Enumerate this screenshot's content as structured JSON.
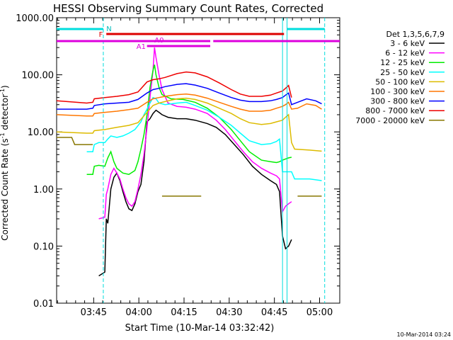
{
  "chart_data": {
    "type": "line",
    "title": "HESSI Observing Summary Count Rates, Corrected",
    "xlabel": "Start Time (10-Mar-14 03:32:42)",
    "ylabel_main": "Corrected Count Rate (s",
    "ylabel_sup": "-1",
    "ylabel_tail": " detector",
    "ylabel_sup2": "-1",
    "ylabel_close": ")",
    "yscale": "log",
    "ylim": [
      0.01,
      1000
    ],
    "xlim_minutes": [
      0,
      94
    ],
    "y_ticks": [
      {
        "v": 1000,
        "label": "1000.00"
      },
      {
        "v": 100,
        "label": "100.00"
      },
      {
        "v": 10,
        "label": "10.00"
      },
      {
        "v": 1,
        "label": "1.00"
      },
      {
        "v": 0.1,
        "label": "0.10"
      },
      {
        "v": 0.01,
        "label": "0.01"
      }
    ],
    "x_ticks": [
      {
        "t": 12.3,
        "label": "03:45"
      },
      {
        "t": 27.3,
        "label": "04:00"
      },
      {
        "t": 42.3,
        "label": "04:15"
      },
      {
        "t": 57.3,
        "label": "04:30"
      },
      {
        "t": 72.3,
        "label": "04:45"
      },
      {
        "t": 87.3,
        "label": "05:00"
      }
    ],
    "legend_title": "Det 1,3,5,6,7,9",
    "legend_position": "right",
    "grid": false,
    "series": [
      {
        "name": "3 - 6 keV",
        "color": "#000000",
        "points": [
          [
            14,
            0.03
          ],
          [
            16,
            0.035
          ],
          [
            16.5,
            0.3
          ],
          [
            17,
            0.25
          ],
          [
            18,
            1.0
          ],
          [
            19,
            1.6
          ],
          [
            20,
            1.9
          ],
          [
            21,
            1.4
          ],
          [
            22,
            0.9
          ],
          [
            23,
            0.6
          ],
          [
            24,
            0.45
          ],
          [
            25,
            0.42
          ],
          [
            26,
            0.55
          ],
          [
            27,
            0.9
          ],
          [
            28,
            1.2
          ],
          [
            29,
            3
          ],
          [
            30,
            15
          ],
          [
            31,
            17
          ],
          [
            32,
            21
          ],
          [
            33,
            24
          ],
          [
            34,
            22
          ],
          [
            35,
            20
          ],
          [
            37,
            18
          ],
          [
            40,
            17
          ],
          [
            43,
            17
          ],
          [
            46,
            16
          ],
          [
            50,
            14
          ],
          [
            53,
            12
          ],
          [
            56,
            9
          ],
          [
            59,
            6
          ],
          [
            62,
            4
          ],
          [
            65,
            2.5
          ],
          [
            68,
            1.8
          ],
          [
            71,
            1.4
          ],
          [
            73,
            1.2
          ],
          [
            74,
            0.9
          ],
          [
            75,
            0.15
          ],
          [
            76,
            0.09
          ],
          [
            77,
            0.1
          ],
          [
            78,
            0.13
          ]
        ]
      },
      {
        "name": "6 - 12 keV",
        "color": "#ff00ff",
        "points": [
          [
            14,
            0.3
          ],
          [
            16,
            0.32
          ],
          [
            16.5,
            0.8
          ],
          [
            17,
            1.0
          ],
          [
            18,
            1.8
          ],
          [
            19,
            2.3
          ],
          [
            20,
            1.9
          ],
          [
            21,
            1.5
          ],
          [
            22,
            1.0
          ],
          [
            23,
            0.7
          ],
          [
            24,
            0.55
          ],
          [
            25,
            0.5
          ],
          [
            26,
            0.6
          ],
          [
            27,
            1.0
          ],
          [
            28,
            1.8
          ],
          [
            29,
            4
          ],
          [
            30,
            12
          ],
          [
            31,
            40
          ],
          [
            32,
            120
          ],
          [
            32.5,
            300
          ],
          [
            33,
            200
          ],
          [
            34,
            100
          ],
          [
            35,
            55
          ],
          [
            37,
            32
          ],
          [
            40,
            28
          ],
          [
            43,
            27
          ],
          [
            46,
            25
          ],
          [
            50,
            21
          ],
          [
            53,
            16
          ],
          [
            56,
            11
          ],
          [
            59,
            7
          ],
          [
            62,
            4.5
          ],
          [
            65,
            3
          ],
          [
            68,
            2.3
          ],
          [
            71,
            1.9
          ],
          [
            73,
            1.7
          ],
          [
            74,
            1.5
          ],
          [
            75,
            0.4
          ],
          [
            76,
            0.5
          ],
          [
            77,
            0.55
          ],
          [
            78,
            0.6
          ]
        ]
      },
      {
        "name": "12 - 25 keV",
        "color": "#00ee00",
        "points": [
          [
            10,
            1.8
          ],
          [
            12,
            1.8
          ],
          [
            12.5,
            2.5
          ],
          [
            14,
            2.6
          ],
          [
            16,
            2.5
          ],
          [
            17,
            3.5
          ],
          [
            18,
            4.5
          ],
          [
            19,
            3.0
          ],
          [
            20,
            2.3
          ],
          [
            22,
            1.9
          ],
          [
            24,
            1.8
          ],
          [
            26,
            2.1
          ],
          [
            27,
            3
          ],
          [
            28,
            5
          ],
          [
            29,
            9
          ],
          [
            30,
            20
          ],
          [
            31,
            60
          ],
          [
            32,
            120
          ],
          [
            32.5,
            150
          ],
          [
            33,
            100
          ],
          [
            34,
            60
          ],
          [
            35,
            45
          ],
          [
            38,
            38
          ],
          [
            42,
            37
          ],
          [
            46,
            33
          ],
          [
            50,
            26
          ],
          [
            54,
            18
          ],
          [
            58,
            11
          ],
          [
            61,
            7
          ],
          [
            64,
            4.5
          ],
          [
            68,
            3.2
          ],
          [
            71,
            3.0
          ],
          [
            73,
            2.9
          ],
          [
            74,
            3.0
          ],
          [
            75,
            3.2
          ],
          [
            77,
            3.5
          ],
          [
            78,
            3.6
          ]
        ]
      },
      {
        "name": "25 - 50 keV",
        "color": "#00ffff",
        "points": [
          [
            10,
            4.5
          ],
          [
            12,
            4.5
          ],
          [
            12.5,
            6.0
          ],
          [
            14,
            6.5
          ],
          [
            16,
            6.5
          ],
          [
            17,
            7.5
          ],
          [
            18,
            8.5
          ],
          [
            20,
            8
          ],
          [
            22,
            8.5
          ],
          [
            24,
            9.5
          ],
          [
            26,
            11
          ],
          [
            28,
            15
          ],
          [
            29,
            20
          ],
          [
            30,
            25
          ],
          [
            31,
            32
          ],
          [
            32,
            40
          ],
          [
            33,
            38
          ],
          [
            34,
            32
          ],
          [
            36,
            30
          ],
          [
            40,
            32
          ],
          [
            43,
            33
          ],
          [
            46,
            29
          ],
          [
            50,
            24
          ],
          [
            54,
            18
          ],
          [
            58,
            13
          ],
          [
            61,
            9.5
          ],
          [
            64,
            7
          ],
          [
            68,
            6
          ],
          [
            71,
            6.2
          ],
          [
            73,
            6.8
          ],
          [
            74,
            7.5
          ],
          [
            75,
            2.0
          ],
          [
            78,
            2.0
          ],
          [
            79,
            1.5
          ],
          [
            84,
            1.5
          ],
          [
            88,
            1.4
          ]
        ]
      },
      {
        "name": "50 - 100 keV",
        "color": "#ddbb00",
        "points": [
          [
            0,
            10
          ],
          [
            10,
            9.5
          ],
          [
            12,
            9.5
          ],
          [
            12.5,
            10.5
          ],
          [
            16,
            11
          ],
          [
            20,
            12
          ],
          [
            24,
            13
          ],
          [
            27,
            14.5
          ],
          [
            30,
            22
          ],
          [
            32,
            29
          ],
          [
            34,
            32
          ],
          [
            36,
            34
          ],
          [
            40,
            38
          ],
          [
            43,
            39
          ],
          [
            46,
            37
          ],
          [
            50,
            32
          ],
          [
            54,
            26
          ],
          [
            58,
            21
          ],
          [
            61,
            17
          ],
          [
            64,
            14.5
          ],
          [
            68,
            13.5
          ],
          [
            71,
            14
          ],
          [
            73,
            15
          ],
          [
            75,
            16
          ],
          [
            76,
            18
          ],
          [
            77,
            20
          ],
          [
            78,
            6.5
          ],
          [
            79,
            5
          ],
          [
            84,
            4.8
          ],
          [
            88,
            4.6
          ]
        ]
      },
      {
        "name": "100 - 300 keV",
        "color": "#ff7700",
        "points": [
          [
            0,
            20
          ],
          [
            10,
            19
          ],
          [
            12,
            19
          ],
          [
            12.5,
            21
          ],
          [
            16,
            22
          ],
          [
            20,
            23
          ],
          [
            24,
            24.5
          ],
          [
            27,
            26
          ],
          [
            30,
            33
          ],
          [
            32,
            38
          ],
          [
            34,
            40
          ],
          [
            36,
            42
          ],
          [
            40,
            45
          ],
          [
            43,
            46
          ],
          [
            46,
            44
          ],
          [
            50,
            39
          ],
          [
            54,
            33
          ],
          [
            58,
            28
          ],
          [
            61,
            25
          ],
          [
            64,
            23
          ],
          [
            68,
            23
          ],
          [
            71,
            24
          ],
          [
            73,
            26
          ],
          [
            75,
            28
          ],
          [
            76,
            30
          ],
          [
            77,
            33
          ],
          [
            78,
            25
          ],
          [
            80,
            26
          ],
          [
            83,
            31
          ],
          [
            86,
            29
          ],
          [
            88,
            25
          ]
        ]
      },
      {
        "name": "300 - 800 keV",
        "color": "#0000ff",
        "points": [
          [
            0,
            25
          ],
          [
            10,
            25
          ],
          [
            12,
            26
          ],
          [
            12.5,
            29
          ],
          [
            16,
            31
          ],
          [
            20,
            32
          ],
          [
            24,
            33
          ],
          [
            27,
            37
          ],
          [
            30,
            48
          ],
          [
            32,
            55
          ],
          [
            34,
            58
          ],
          [
            36,
            62
          ],
          [
            40,
            68
          ],
          [
            43,
            70
          ],
          [
            46,
            66
          ],
          [
            50,
            58
          ],
          [
            54,
            48
          ],
          [
            58,
            40
          ],
          [
            61,
            36
          ],
          [
            64,
            34
          ],
          [
            68,
            34
          ],
          [
            71,
            35
          ],
          [
            73,
            37
          ],
          [
            75,
            40
          ],
          [
            76,
            44
          ],
          [
            77,
            48
          ],
          [
            78,
            30
          ],
          [
            80,
            33
          ],
          [
            83,
            38
          ],
          [
            86,
            35
          ],
          [
            88,
            31
          ]
        ]
      },
      {
        "name": "800 - 7000 keV",
        "color": "#ee0000",
        "points": [
          [
            0,
            35
          ],
          [
            10,
            32
          ],
          [
            12,
            33
          ],
          [
            12.5,
            38
          ],
          [
            16,
            40
          ],
          [
            20,
            42
          ],
          [
            24,
            45
          ],
          [
            27,
            50
          ],
          [
            30,
            75
          ],
          [
            32,
            82
          ],
          [
            34,
            85
          ],
          [
            36,
            90
          ],
          [
            40,
            105
          ],
          [
            43,
            112
          ],
          [
            46,
            108
          ],
          [
            50,
            92
          ],
          [
            54,
            72
          ],
          [
            58,
            55
          ],
          [
            61,
            46
          ],
          [
            64,
            42
          ],
          [
            68,
            42
          ],
          [
            71,
            44
          ],
          [
            73,
            48
          ],
          [
            75,
            52
          ],
          [
            76,
            58
          ],
          [
            77,
            65
          ],
          [
            78,
            40
          ]
        ]
      },
      {
        "name": "7000 - 20000 keV",
        "color": "#887700",
        "points": [
          [
            0,
            8
          ],
          [
            5,
            8
          ],
          [
            6,
            6
          ],
          [
            10,
            6
          ],
          [
            12,
            6
          ]
        ]
      }
    ],
    "flat_segments": [
      {
        "name": "7000 - 20000 keV",
        "color": "#887700",
        "t0": 35,
        "t1": 48,
        "v": 0.75
      },
      {
        "name": "7000 - 20000 keV",
        "color": "#887700",
        "t0": 80,
        "t1": 88,
        "v": 0.75
      }
    ],
    "annotations": {
      "top_bar_label": "N",
      "flare_bar_label": "F",
      "attenuator_label_a0": "A0",
      "attenuator_label_a1": "A1",
      "vertical_markers_dashed_t": [
        15.5,
        89
      ],
      "vertical_markers_solid_t": [
        75,
        76.5
      ]
    },
    "footer_timestamp": "10-Mar-2014 03:24"
  }
}
